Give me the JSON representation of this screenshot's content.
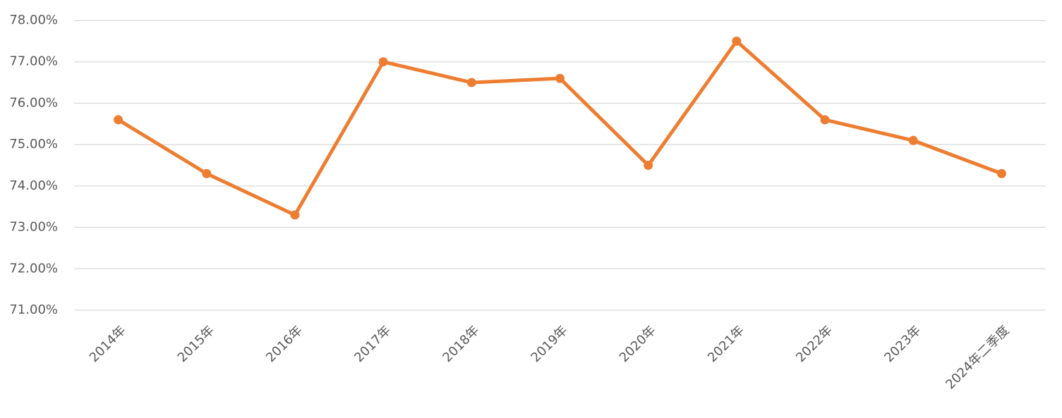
{
  "chart_data": {
    "type": "line",
    "categories": [
      "2014年",
      "2015年",
      "2016年",
      "2017年",
      "2018年",
      "2019年",
      "2020年",
      "2021年",
      "2022年",
      "2023年",
      "2024年二季度"
    ],
    "series": [
      {
        "color": "#ed7d31",
        "values": [
          75.6,
          74.3,
          73.3,
          77.0,
          76.5,
          76.6,
          74.5,
          77.5,
          75.6,
          75.1,
          74.3
        ]
      }
    ],
    "ylim": [
      71,
      78
    ],
    "yticks": [
      {
        "value": 71,
        "label": "71.00%"
      },
      {
        "value": 72,
        "label": "72.00%"
      },
      {
        "value": 73,
        "label": "73.00%"
      },
      {
        "value": 74,
        "label": "74.00%"
      },
      {
        "value": 75,
        "label": "75.00%"
      },
      {
        "value": 76,
        "label": "76.00%"
      },
      {
        "value": 77,
        "label": "77.00%"
      },
      {
        "value": 78,
        "label": "78.00%"
      }
    ],
    "grid": true
  }
}
